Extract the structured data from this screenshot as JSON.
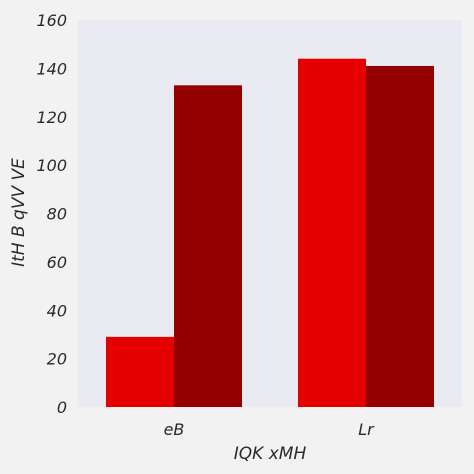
{
  "colors": {
    "page_background": "#f2f2f2",
    "plot_background": "#eaeaf2",
    "series_1": "#e50000",
    "series_2": "#940000"
  },
  "chart_data": {
    "type": "bar",
    "title": "",
    "xlabel": "IQK xMH",
    "ylabel": "ItH B qVV VE",
    "categories": [
      "eB",
      "Lr"
    ],
    "series": [
      {
        "values": [
          29,
          144
        ]
      },
      {
        "values": [
          133,
          141
        ]
      }
    ],
    "ylim": [
      0,
      160
    ],
    "yticks": [
      0,
      20,
      40,
      60,
      80,
      100,
      120,
      140,
      160
    ],
    "grid": false,
    "legend": "none"
  }
}
